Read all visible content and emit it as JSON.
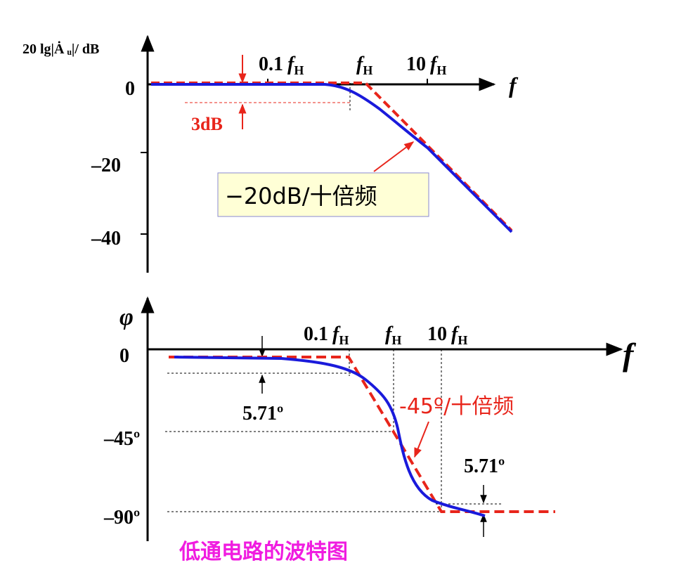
{
  "colors": {
    "axis": "#000000",
    "actual_curve": "#1a1adb",
    "asymptote": "#e8251b",
    "caption": "#f01ce0",
    "note_box_fill": "#ffffd6",
    "note_box_border": "#8a8ad0"
  },
  "magnitude_plot": {
    "y_axis_label": "20 lg|Ȧ ᵤ|/ dB",
    "y_ticks": [
      "0",
      "–20",
      "–40"
    ],
    "x_axis_label": "f",
    "x_ticks": [
      {
        "coef": "0.1",
        "sym": "f",
        "sub": "H"
      },
      {
        "coef": "",
        "sym": "f",
        "sub": "H"
      },
      {
        "coef": "10",
        "sym": "f",
        "sub": "H"
      }
    ],
    "drop_marker": "3dB",
    "slope_note": "−20dB/十倍频"
  },
  "phase_plot": {
    "y_axis_label": "φ",
    "y_ticks": [
      "0",
      "–45º",
      "–90º"
    ],
    "x_axis_label": "f",
    "x_ticks": [
      {
        "coef": "0.1",
        "sym": "f",
        "sub": "H"
      },
      {
        "coef": "",
        "sym": "f",
        "sub": "H"
      },
      {
        "coef": "10",
        "sym": "f",
        "sub": "H"
      }
    ],
    "offset_marker_left": "5.71º",
    "offset_marker_right": "5.71º",
    "slope_note": "-45º/十倍频"
  },
  "caption": "低通电路的波特图"
}
